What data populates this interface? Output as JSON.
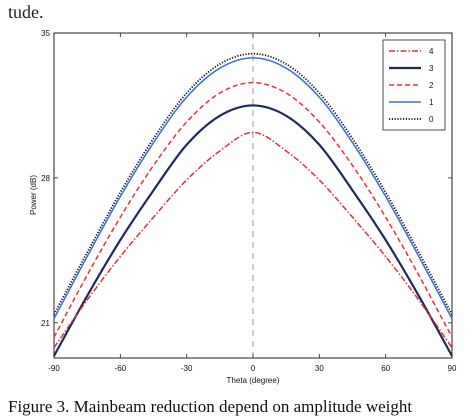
{
  "top_fragment": "tude.",
  "caption": "Figure 3.    Mainbeam reduction depend on amplitude weight",
  "chart_data": {
    "type": "line",
    "xlabel": "Theta (degree)",
    "ylabel": "Power (dB)",
    "xlim": [
      -90,
      90
    ],
    "ylim": [
      19.3,
      35
    ],
    "x_ticks": [
      -90,
      -60,
      -30,
      0,
      30,
      60,
      90
    ],
    "x_tick_labels": [
      "-90",
      "-60",
      "-30",
      "0",
      "30",
      "60",
      "90"
    ],
    "y_ticks": [
      21,
      28,
      35
    ],
    "y_tick_labels": [
      "21",
      "28",
      "35"
    ],
    "grid": false,
    "vertical_reference_line": {
      "x": 0,
      "style": "dashed",
      "color": "#9a9a9a"
    },
    "legend_position": "top-right",
    "x": [
      -90,
      -75,
      -60,
      -45,
      -30,
      -15,
      0,
      15,
      30,
      45,
      60,
      75,
      90
    ],
    "series": [
      {
        "name": "4",
        "color": "#d8323c",
        "style": "dash-dot",
        "values": [
          19.8,
          22.1,
          24.2,
          26.1,
          27.9,
          29.3,
          30.2,
          29.3,
          27.9,
          26.1,
          24.2,
          22.1,
          19.8
        ]
      },
      {
        "name": "3",
        "color": "#1f2a5c",
        "style": "solid-thick",
        "values": [
          19.4,
          22.3,
          25.0,
          27.4,
          29.6,
          31.0,
          31.5,
          31.0,
          29.6,
          27.4,
          25.0,
          22.3,
          19.4
        ]
      },
      {
        "name": "2",
        "color": "#e8303a",
        "style": "dashed",
        "values": [
          20.3,
          23.3,
          26.1,
          28.6,
          30.7,
          32.1,
          32.6,
          32.1,
          30.7,
          28.6,
          26.1,
          23.3,
          20.3
        ]
      },
      {
        "name": "1",
        "color": "#3a6fd8",
        "style": "solid",
        "values": [
          21.2,
          24.2,
          27.1,
          29.7,
          31.9,
          33.3,
          33.8,
          33.3,
          31.9,
          29.7,
          27.1,
          24.2,
          21.2
        ]
      },
      {
        "name": "0",
        "color": "#111111",
        "style": "dotted",
        "values": [
          21.4,
          24.4,
          27.3,
          29.9,
          32.1,
          33.5,
          34.0,
          33.5,
          32.1,
          29.9,
          27.3,
          24.4,
          21.4
        ]
      }
    ]
  }
}
